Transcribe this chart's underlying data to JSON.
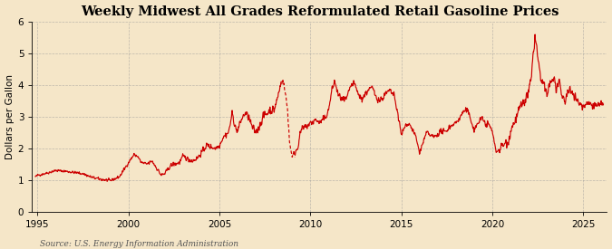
{
  "title": "Weekly Midwest All Grades Reformulated Retail Gasoline Prices",
  "ylabel": "Dollars per Gallon",
  "source": "Source: U.S. Energy Information Administration",
  "xlim": [
    1994.7,
    2026.3
  ],
  "ylim": [
    0,
    6
  ],
  "yticks": [
    0,
    1,
    2,
    3,
    4,
    5,
    6
  ],
  "xticks": [
    1995,
    2000,
    2005,
    2010,
    2015,
    2020,
    2025
  ],
  "background_color": "#F5E6C8",
  "plot_bg_color": "#F5E6C8",
  "line_color": "#CC0000",
  "grid_color": "#999999",
  "title_fontsize": 10.5,
  "label_fontsize": 7.5,
  "tick_fontsize": 7.5,
  "source_fontsize": 6.5,
  "dashed_start": 2008.4,
  "dashed_end": 2009.15
}
